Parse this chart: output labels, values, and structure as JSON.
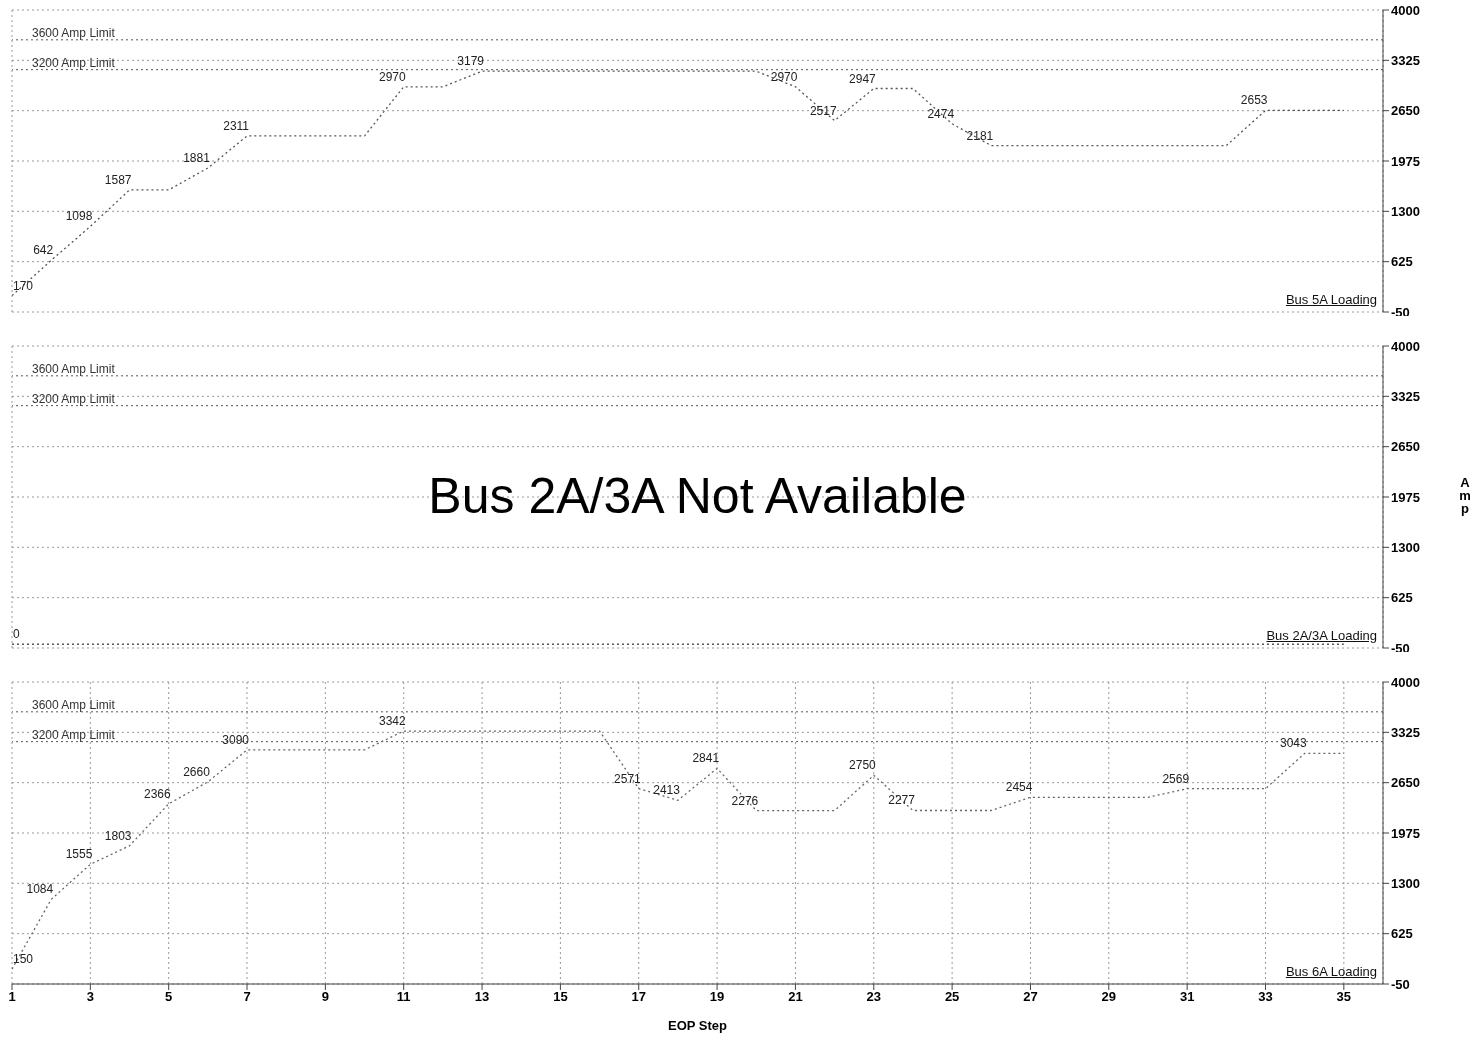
{
  "chart_data": [
    {
      "type": "line",
      "title": "Bus 5A Loading",
      "x": [
        1,
        2,
        3,
        4,
        5,
        6,
        7,
        8,
        9,
        10,
        11,
        12,
        13,
        14,
        15,
        16,
        17,
        18,
        19,
        20,
        21,
        22,
        23,
        24,
        25,
        26,
        27,
        28,
        29,
        30,
        31,
        32,
        33,
        34,
        35
      ],
      "values": [
        170,
        642,
        1098,
        1587,
        1587,
        1881,
        2311,
        2311,
        2311,
        2311,
        2970,
        2970,
        3179,
        3179,
        3179,
        3179,
        3179,
        3179,
        3179,
        3179,
        2970,
        2517,
        2947,
        2947,
        2474,
        2181,
        2181,
        2181,
        2181,
        2181,
        2181,
        2181,
        2653,
        2653,
        2653
      ],
      "value_labels": [
        "170",
        "642",
        "1098",
        "1587",
        null,
        "1881",
        "2311",
        null,
        null,
        null,
        "2970",
        null,
        "3179",
        null,
        null,
        null,
        null,
        null,
        null,
        null,
        "2970",
        "2517",
        "2947",
        null,
        "2474",
        "2181",
        null,
        null,
        null,
        null,
        null,
        null,
        "2653",
        null,
        null
      ],
      "color": "#555555",
      "xlim": [
        1,
        36
      ],
      "xticks": [
        1,
        3,
        5,
        7,
        9,
        11,
        13,
        15,
        17,
        19,
        21,
        23,
        25,
        27,
        29,
        31,
        33,
        35
      ],
      "ylim": [
        -50,
        4000
      ],
      "yticks": [
        -50,
        625,
        1300,
        1975,
        2650,
        3325,
        4000
      ],
      "ref_lines": [
        {
          "axis": "y",
          "value": 3600,
          "label": "3600 Amp Limit"
        },
        {
          "axis": "y",
          "value": 3200,
          "label": "3200 Amp Limit"
        }
      ],
      "grid": true,
      "marker": "none",
      "line_style": "dotted",
      "tick_labels": "y"
    },
    {
      "type": "line",
      "title": "Bus 2A/3A Loading",
      "ylabel": "Amp",
      "annotations": [
        "Bus 2A/3A Not Available"
      ],
      "x": [
        1,
        2,
        3,
        4,
        5,
        6,
        7,
        8,
        9,
        10,
        11,
        12,
        13,
        14,
        15,
        16,
        17,
        18,
        19,
        20,
        21,
        22,
        23,
        24,
        25,
        26,
        27,
        28,
        29,
        30,
        31,
        32,
        33,
        34,
        35
      ],
      "values": [
        0,
        0,
        0,
        0,
        0,
        0,
        0,
        0,
        0,
        0,
        0,
        0,
        0,
        0,
        0,
        0,
        0,
        0,
        0,
        0,
        0,
        0,
        0,
        0,
        0,
        0,
        0,
        0,
        0,
        0,
        0,
        0,
        0,
        0,
        0
      ],
      "value_labels": [
        "0",
        null,
        null,
        null,
        null,
        null,
        null,
        null,
        null,
        null,
        null,
        null,
        null,
        null,
        null,
        null,
        null,
        null,
        null,
        null,
        null,
        null,
        null,
        null,
        null,
        null,
        null,
        null,
        null,
        null,
        null,
        null,
        null,
        null,
        null
      ],
      "color": "#555555",
      "xlim": [
        1,
        36
      ],
      "xticks": [
        1,
        3,
        5,
        7,
        9,
        11,
        13,
        15,
        17,
        19,
        21,
        23,
        25,
        27,
        29,
        31,
        33,
        35
      ],
      "ylim": [
        -50,
        4000
      ],
      "yticks": [
        -50,
        625,
        1300,
        1975,
        2650,
        3325,
        4000
      ],
      "ref_lines": [
        {
          "axis": "y",
          "value": 3600,
          "label": "3600 Amp Limit"
        },
        {
          "axis": "y",
          "value": 3200,
          "label": "3200 Amp Limit"
        }
      ],
      "grid": true,
      "marker": "none",
      "line_style": "dotted",
      "tick_labels": "y"
    },
    {
      "type": "line",
      "title": "Bus 6A Loading",
      "xlabel": "EOP Step",
      "x": [
        1,
        2,
        3,
        4,
        5,
        6,
        7,
        8,
        9,
        10,
        11,
        12,
        13,
        14,
        15,
        16,
        17,
        18,
        19,
        20,
        21,
        22,
        23,
        24,
        25,
        26,
        27,
        28,
        29,
        30,
        31,
        32,
        33,
        34,
        35
      ],
      "values": [
        150,
        1084,
        1555,
        1803,
        2366,
        2660,
        3090,
        3090,
        3090,
        3090,
        3342,
        3342,
        3342,
        3342,
        3342,
        3342,
        2571,
        2413,
        2841,
        2276,
        2276,
        2276,
        2750,
        2277,
        2277,
        2277,
        2454,
        2454,
        2454,
        2454,
        2569,
        2569,
        2569,
        3043,
        3043
      ],
      "value_labels": [
        "150",
        "1084",
        "1555",
        "1803",
        "2366",
        "2660",
        "3090",
        null,
        null,
        null,
        "3342",
        null,
        null,
        null,
        null,
        null,
        "2571",
        "2413",
        "2841",
        "2276",
        null,
        null,
        "2750",
        "2277",
        null,
        null,
        "2454",
        null,
        null,
        null,
        "2569",
        null,
        null,
        "3043",
        null
      ],
      "color": "#666666",
      "xlim": [
        1,
        36
      ],
      "xticks": [
        1,
        3,
        5,
        7,
        9,
        11,
        13,
        15,
        17,
        19,
        21,
        23,
        25,
        27,
        29,
        31,
        33,
        35
      ],
      "ylim": [
        -50,
        4000
      ],
      "yticks": [
        -50,
        625,
        1300,
        1975,
        2650,
        3325,
        4000
      ],
      "ref_lines": [
        {
          "axis": "y",
          "value": 3600,
          "label": "3600 Amp Limit"
        },
        {
          "axis": "y",
          "value": 3200,
          "label": "3200 Amp Limit"
        }
      ],
      "grid": true,
      "marker": "none",
      "line_style": "dotted"
    }
  ]
}
